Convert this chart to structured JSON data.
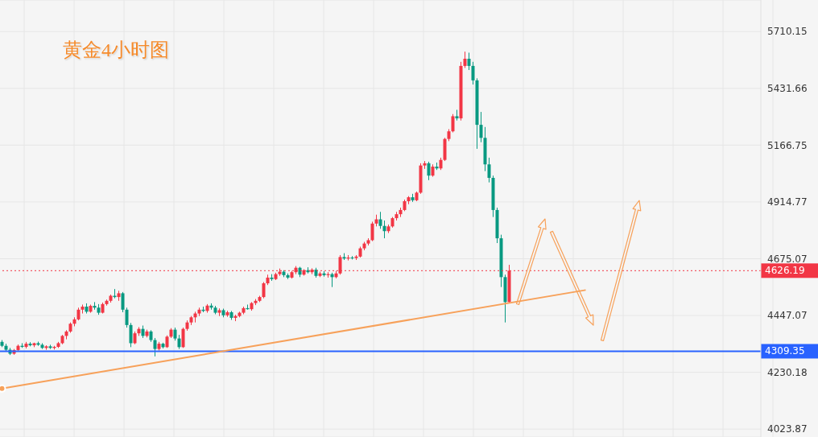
{
  "chart_data": {
    "type": "candlestick",
    "title": "黄金4小时图",
    "categories": [
      null,
      null,
      null,
      null,
      null,
      null,
      null,
      null,
      null,
      null,
      null,
      null,
      null,
      null,
      null,
      null,
      null,
      null,
      null,
      null,
      null,
      null,
      null,
      null,
      null,
      null,
      null,
      null,
      null,
      null,
      null,
      null,
      null,
      null,
      null,
      null,
      null,
      null,
      null,
      null,
      null,
      null,
      null,
      null,
      null,
      null,
      null,
      null,
      null,
      null,
      null,
      null,
      null,
      null,
      null,
      null,
      null,
      null,
      null,
      null,
      null,
      null,
      null,
      null,
      null,
      null,
      null,
      null,
      null,
      null,
      null,
      null,
      null,
      null,
      null,
      null,
      null,
      null,
      null,
      null,
      null,
      null,
      null,
      null,
      null,
      null,
      null,
      null,
      null,
      null,
      null,
      null,
      null,
      null,
      null,
      null,
      null,
      null,
      null,
      null,
      null,
      null,
      null,
      null,
      null,
      null,
      null,
      null,
      null,
      null,
      null,
      null,
      null,
      null,
      null,
      null,
      null,
      null,
      null,
      null,
      null,
      null,
      null,
      null,
      null,
      null,
      null,
      null,
      null,
      null,
      null,
      null,
      null,
      null,
      null,
      null,
      null,
      null,
      null,
      null,
      null,
      null,
      null,
      null,
      null,
      null,
      null,
      null,
      null,
      null,
      null,
      null,
      null,
      null,
      null,
      null,
      null,
      null,
      null,
      null,
      null,
      null,
      null,
      null,
      null,
      null,
      null,
      null,
      null,
      null,
      null,
      null,
      null,
      null,
      null,
      null,
      null,
      null,
      null,
      null,
      null,
      null,
      null,
      null,
      null,
      null,
      null,
      null,
      null
    ],
    "ohlc": [
      [
        4345,
        4352,
        4325,
        4330
      ],
      [
        4330,
        4338,
        4310,
        4315
      ],
      [
        4315,
        4322,
        4295,
        4300
      ],
      [
        4300,
        4318,
        4296,
        4314
      ],
      [
        4314,
        4335,
        4310,
        4330
      ],
      [
        4330,
        4340,
        4322,
        4326
      ],
      [
        4326,
        4345,
        4320,
        4338
      ],
      [
        4338,
        4344,
        4328,
        4332
      ],
      [
        4332,
        4342,
        4325,
        4340
      ],
      [
        4340,
        4346,
        4330,
        4334
      ],
      [
        4334,
        4340,
        4318,
        4322
      ],
      [
        4322,
        4332,
        4315,
        4328
      ],
      [
        4328,
        4334,
        4318,
        4322
      ],
      [
        4322,
        4330,
        4316,
        4326
      ],
      [
        4326,
        4345,
        4322,
        4340
      ],
      [
        4340,
        4372,
        4336,
        4368
      ],
      [
        4368,
        4390,
        4355,
        4385
      ],
      [
        4385,
        4420,
        4380,
        4415
      ],
      [
        4415,
        4440,
        4405,
        4432
      ],
      [
        4432,
        4478,
        4428,
        4470
      ],
      [
        4470,
        4490,
        4455,
        4482
      ],
      [
        4482,
        4495,
        4455,
        4462
      ],
      [
        4462,
        4490,
        4458,
        4485
      ],
      [
        4485,
        4500,
        4470,
        4478
      ],
      [
        4478,
        4492,
        4450,
        4458
      ],
      [
        4458,
        4498,
        4455,
        4492
      ],
      [
        4492,
        4510,
        4486,
        4505
      ],
      [
        4505,
        4530,
        4498,
        4525
      ],
      [
        4525,
        4552,
        4515,
        4520
      ],
      [
        4520,
        4545,
        4505,
        4535
      ],
      [
        4535,
        4540,
        4460,
        4470
      ],
      [
        4470,
        4478,
        4400,
        4410
      ],
      [
        4410,
        4418,
        4325,
        4340
      ],
      [
        4340,
        4385,
        4336,
        4378
      ],
      [
        4378,
        4402,
        4368,
        4395
      ],
      [
        4395,
        4408,
        4360,
        4368
      ],
      [
        4368,
        4392,
        4362,
        4385
      ],
      [
        4385,
        4390,
        4345,
        4352
      ],
      [
        4352,
        4360,
        4290,
        4318
      ],
      [
        4318,
        4345,
        4312,
        4338
      ],
      [
        4338,
        4342,
        4320,
        4325
      ],
      [
        4325,
        4370,
        4322,
        4365
      ],
      [
        4365,
        4398,
        4360,
        4392
      ],
      [
        4392,
        4400,
        4350,
        4358
      ],
      [
        4358,
        4372,
        4318,
        4325
      ],
      [
        4325,
        4400,
        4322,
        4395
      ],
      [
        4395,
        4428,
        4388,
        4420
      ],
      [
        4420,
        4445,
        4410,
        4440
      ],
      [
        4440,
        4462,
        4420,
        4455
      ],
      [
        4455,
        4478,
        4445,
        4470
      ],
      [
        4470,
        4482,
        4460,
        4465
      ],
      [
        4465,
        4492,
        4458,
        4486
      ],
      [
        4486,
        4495,
        4470,
        4478
      ],
      [
        4478,
        4485,
        4452,
        4458
      ],
      [
        4458,
        4475,
        4445,
        4468
      ],
      [
        4468,
        4474,
        4440,
        4448
      ],
      [
        4448,
        4466,
        4442,
        4460
      ],
      [
        4460,
        4465,
        4430,
        4438
      ],
      [
        4438,
        4450,
        4425,
        4445
      ],
      [
        4445,
        4462,
        4440,
        4458
      ],
      [
        4458,
        4482,
        4452,
        4476
      ],
      [
        4476,
        4490,
        4470,
        4472
      ],
      [
        4472,
        4500,
        4466,
        4496
      ],
      [
        4496,
        4512,
        4488,
        4505
      ],
      [
        4505,
        4525,
        4500,
        4520
      ],
      [
        4520,
        4580,
        4515,
        4575
      ],
      [
        4575,
        4610,
        4568,
        4598
      ],
      [
        4598,
        4612,
        4585,
        4592
      ],
      [
        4592,
        4618,
        4588,
        4612
      ],
      [
        4612,
        4635,
        4605,
        4622
      ],
      [
        4622,
        4628,
        4600,
        4608
      ],
      [
        4608,
        4615,
        4592,
        4598
      ],
      [
        4598,
        4625,
        4594,
        4620
      ],
      [
        4620,
        4645,
        4612,
        4638
      ],
      [
        4638,
        4642,
        4600,
        4610
      ],
      [
        4610,
        4632,
        4606,
        4628
      ],
      [
        4628,
        4640,
        4615,
        4620
      ],
      [
        4620,
        4636,
        4612,
        4630
      ],
      [
        4630,
        4638,
        4598,
        4605
      ],
      [
        4605,
        4622,
        4600,
        4615
      ],
      [
        4615,
        4624,
        4602,
        4608
      ],
      [
        4608,
        4620,
        4598,
        4612
      ],
      [
        4612,
        4618,
        4560,
        4600
      ],
      [
        4600,
        4625,
        4595,
        4615
      ],
      [
        4615,
        4690,
        4610,
        4682
      ],
      [
        4682,
        4698,
        4670,
        4676
      ],
      [
        4676,
        4690,
        4668,
        4680
      ],
      [
        4680,
        4686,
        4672,
        4678
      ],
      [
        4678,
        4690,
        4670,
        4684
      ],
      [
        4684,
        4725,
        4680,
        4718
      ],
      [
        4718,
        4745,
        4710,
        4738
      ],
      [
        4738,
        4760,
        4730,
        4752
      ],
      [
        4752,
        4830,
        4748,
        4822
      ],
      [
        4822,
        4860,
        4810,
        4840
      ],
      [
        4840,
        4872,
        4800,
        4812
      ],
      [
        4812,
        4835,
        4760,
        4790
      ],
      [
        4790,
        4818,
        4782,
        4810
      ],
      [
        4810,
        4850,
        4805,
        4845
      ],
      [
        4845,
        4872,
        4835,
        4862
      ],
      [
        4862,
        4890,
        4850,
        4880
      ],
      [
        4880,
        4925,
        4875,
        4918
      ],
      [
        4918,
        4940,
        4905,
        4935
      ],
      [
        4935,
        4950,
        4915,
        4922
      ],
      [
        4922,
        4960,
        4918,
        4955
      ],
      [
        4955,
        5085,
        4950,
        5075
      ],
      [
        5075,
        5095,
        5060,
        5085
      ],
      [
        5085,
        5092,
        5010,
        5030
      ],
      [
        5030,
        5080,
        5025,
        5070
      ],
      [
        5070,
        5088,
        5055,
        5062
      ],
      [
        5062,
        5110,
        5055,
        5100
      ],
      [
        5100,
        5200,
        5095,
        5195
      ],
      [
        5195,
        5240,
        5185,
        5230
      ],
      [
        5230,
        5310,
        5225,
        5300
      ],
      [
        5300,
        5330,
        5280,
        5290
      ],
      [
        5290,
        5560,
        5280,
        5540
      ],
      [
        5540,
        5610,
        5530,
        5575
      ],
      [
        5575,
        5605,
        5520,
        5540
      ],
      [
        5540,
        5560,
        5450,
        5470
      ],
      [
        5470,
        5480,
        5150,
        5260
      ],
      [
        5260,
        5320,
        5180,
        5200
      ],
      [
        5200,
        5250,
        5050,
        5080
      ],
      [
        5080,
        5110,
        5000,
        5020
      ],
      [
        5020,
        5030,
        4850,
        4880
      ],
      [
        4880,
        4890,
        4740,
        4760
      ],
      [
        4760,
        4775,
        4560,
        4600
      ],
      [
        4600,
        4610,
        4420,
        4500
      ],
      [
        4500,
        4650,
        4495,
        4626
      ],
      null,
      null,
      null,
      null,
      null,
      null,
      null,
      null,
      null,
      null,
      null,
      null,
      null,
      null,
      null,
      null,
      null,
      null,
      null,
      null,
      null,
      null,
      null,
      null,
      null,
      null,
      null,
      null,
      null,
      null,
      null,
      null,
      null,
      null,
      null,
      null,
      null,
      null,
      null,
      null,
      null,
      null,
      null,
      null,
      null,
      null,
      null,
      null,
      null,
      null,
      null,
      null,
      null,
      null,
      null,
      null,
      null,
      null,
      null,
      null,
      null,
      null
    ],
    "series": [
      {
        "type": "line",
        "color": "#f7a15a",
        "values": [
          4170,
          null,
          null,
          null,
          null,
          null,
          null,
          null,
          null,
          null,
          null,
          null,
          null,
          null,
          null,
          null,
          null,
          null,
          null,
          null,
          null,
          null,
          null,
          null,
          null,
          null,
          null,
          null,
          null,
          null,
          null,
          null,
          null,
          null,
          null,
          null,
          null,
          null,
          null,
          null,
          null,
          null,
          null,
          null,
          null,
          null,
          null,
          null,
          null,
          null,
          null,
          null,
          null,
          null,
          null,
          null,
          null,
          null,
          null,
          null,
          null,
          null,
          null,
          null,
          null,
          null,
          null,
          null,
          null,
          null,
          null,
          null,
          null,
          null,
          null,
          null,
          null,
          null,
          null,
          null,
          null,
          null,
          null,
          null,
          null,
          null,
          null,
          null,
          null,
          null,
          null,
          null,
          null,
          null,
          null,
          null,
          null,
          null,
          null,
          null,
          null,
          null,
          null,
          null,
          null,
          null,
          null,
          null,
          null,
          null,
          null,
          null,
          null,
          null,
          null,
          null,
          null,
          null,
          null,
          null,
          null,
          null,
          null,
          null,
          null,
          null,
          null,
          null,
          null,
          null,
          null,
          null,
          null,
          null,
          null,
          null,
          null,
          null,
          null,
          null,
          null,
          null,
          null,
          null,
          null,
          4548,
          null,
          null,
          null,
          null,
          null,
          null,
          null,
          null,
          null,
          null,
          null,
          null,
          null,
          null,
          null,
          null,
          null,
          null,
          null,
          null,
          null,
          null,
          null,
          null,
          null,
          null,
          null,
          null,
          null,
          null,
          null,
          null,
          null,
          null,
          null,
          null,
          null,
          null,
          null,
          null,
          null,
          null,
          null
        ]
      }
    ],
    "ylim": [
      3996,
      5871
    ],
    "log": "y",
    "yticks": [
      4023.87,
      4230.18,
      4447.07,
      4675.07,
      4914.77,
      5166.75,
      5431.66,
      5710.15
    ],
    "ref_lines": [
      {
        "axis": "y",
        "value": 4309.35,
        "label": "4309.35",
        "color": "#2962ff",
        "line_style": "solid"
      },
      {
        "axis": "y",
        "value": 4626.19,
        "label": "4626.19",
        "color": "#f23645",
        "line_style": "dotted"
      }
    ],
    "grid": true,
    "tick_labels": "y",
    "legend": false
  }
}
